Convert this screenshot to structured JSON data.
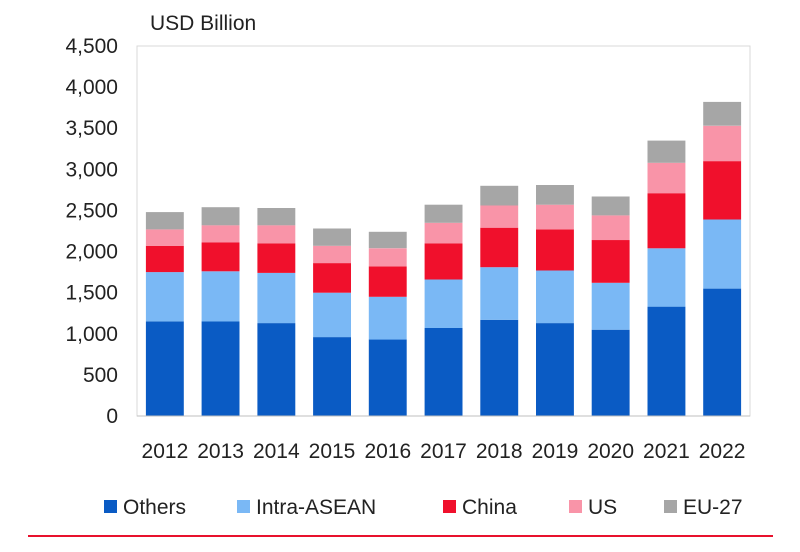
{
  "chart_data": {
    "type": "bar",
    "stacked": true,
    "unit_label": "USD Billion",
    "categories": [
      "2012",
      "2013",
      "2014",
      "2015",
      "2016",
      "2017",
      "2018",
      "2019",
      "2020",
      "2021",
      "2022"
    ],
    "ylim": [
      0,
      4500
    ],
    "yticks": [
      0,
      500,
      1000,
      1500,
      2000,
      2500,
      3000,
      3500,
      4000,
      4500
    ],
    "ytick_labels": [
      "0",
      "500",
      "1,000",
      "1,500",
      "2,000",
      "2,500",
      "3,000",
      "3,500",
      "4,000",
      "4,500"
    ],
    "legend_position": "bottom",
    "series": [
      {
        "name": "Others",
        "color": "#0a5bc4",
        "values": [
          1150,
          1150,
          1130,
          960,
          930,
          1070,
          1170,
          1130,
          1050,
          1330,
          1550
        ]
      },
      {
        "name": "Intra-ASEAN",
        "color": "#7ab8f5",
        "values": [
          600,
          610,
          610,
          540,
          520,
          590,
          640,
          640,
          570,
          710,
          840
        ]
      },
      {
        "name": "China",
        "color": "#f0102c",
        "values": [
          320,
          350,
          360,
          360,
          370,
          440,
          480,
          500,
          520,
          670,
          710
        ]
      },
      {
        "name": "US",
        "color": "#f994a8",
        "values": [
          200,
          210,
          220,
          210,
          220,
          250,
          270,
          300,
          300,
          370,
          430
        ]
      },
      {
        "name": "EU-27",
        "color": "#a6a6a6",
        "values": [
          210,
          220,
          210,
          210,
          200,
          220,
          240,
          240,
          230,
          270,
          290
        ]
      }
    ]
  }
}
